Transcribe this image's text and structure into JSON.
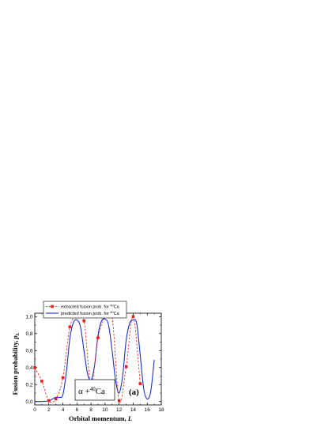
{
  "chart_data": {
    "type": "line",
    "xlabel": "Orbital momentum, L",
    "xlabel_main": "Orbital momentum, ",
    "xlabel_var": "L",
    "ylabel": "Fusion probability, p_L",
    "ylabel_main": "Fusion probability, ",
    "ylabel_var": "p",
    "ylabel_sub": "L",
    "xlim": [
      0,
      18
    ],
    "ylim": [
      -0.04,
      1.04
    ],
    "xticks": [
      "0",
      "2",
      "4",
      "6",
      "8",
      "10",
      "12",
      "14",
      "16",
      "18"
    ],
    "yticks": [
      "0,0",
      "0,2",
      "0,4",
      "0,6",
      "0,8",
      "1,0"
    ],
    "legend_position": "top-left",
    "grid": false,
    "annotation": {
      "alpha": "α",
      "plus": " +",
      "mass": "40",
      "element": "Ca",
      "label": "(a)"
    },
    "series": [
      {
        "name": "extracted fusion prob. for",
        "name_sup": "40",
        "name_el": "Ca",
        "style": "points-dashed",
        "color": "#e8201c",
        "x": [
          0,
          1,
          2,
          3,
          4,
          5,
          6,
          7,
          8,
          9,
          10,
          11,
          12,
          13,
          14,
          15
        ],
        "y": [
          0.4,
          0.24,
          0.01,
          0.03,
          0.28,
          0.88,
          1.0,
          0.95,
          0.2,
          0.75,
          1.0,
          1.0,
          0.01,
          0.41,
          1.0,
          0.21
        ]
      },
      {
        "name": "predicted fusion prob. for",
        "name_sup": "40",
        "name_el": "Ca",
        "style": "solid",
        "color": "#1a2fd0",
        "x": [
          0,
          1,
          2,
          2.5,
          3,
          3.5,
          4,
          4.5,
          5,
          5.5,
          6,
          6.5,
          7,
          7.5,
          8,
          8.5,
          9,
          9.5,
          10,
          10.5,
          11,
          11.5,
          12,
          12.5,
          13,
          13.5,
          14,
          14.5,
          15,
          15.5,
          16,
          16.5,
          17
        ],
        "y": [
          0.0,
          0.0,
          0.01,
          0.03,
          0.05,
          0.05,
          0.08,
          0.35,
          0.75,
          0.93,
          0.96,
          0.88,
          0.6,
          0.33,
          0.25,
          0.42,
          0.78,
          0.95,
          0.97,
          0.9,
          0.6,
          0.25,
          0.1,
          0.3,
          0.72,
          0.92,
          0.96,
          0.92,
          0.55,
          0.15,
          0.03,
          0.12,
          0.49
        ]
      }
    ]
  }
}
